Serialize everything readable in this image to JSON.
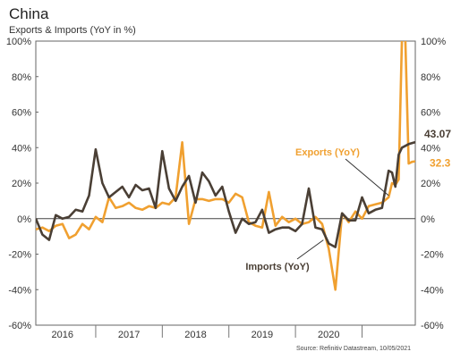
{
  "chart_data": {
    "type": "line",
    "title": "China",
    "subtitle": "Exports & Imports (YoY in %)",
    "source": "Source: Refinitiv Datastream, 10/05/2021",
    "ylim": [
      -60,
      100
    ],
    "y_ticks": [
      -60,
      -40,
      -20,
      0,
      20,
      40,
      60,
      80,
      100
    ],
    "y_tick_labels": [
      "-60%",
      "-40%",
      "-20%",
      "0%",
      "20%",
      "40%",
      "60%",
      "80%",
      "100%"
    ],
    "x_range": [
      2015.6,
      2021.3
    ],
    "x_tick_labels": [
      {
        "label": "2016",
        "pos": 2016.0
      },
      {
        "label": "2017",
        "pos": 2017.0
      },
      {
        "label": "2018",
        "pos": 2018.0
      },
      {
        "label": "2019",
        "pos": 2019.0
      },
      {
        "label": "2020",
        "pos": 2020.0
      }
    ],
    "year_dividers": [
      2016.5,
      2017.5,
      2018.5,
      2019.5,
      2020.5
    ],
    "grid": false,
    "series": [
      {
        "name": "Exports (YoY)",
        "color": "#f0a030",
        "end_label": "32.3",
        "points": [
          [
            2015.6,
            -6
          ],
          [
            2015.7,
            -5
          ],
          [
            2015.8,
            -7
          ],
          [
            2015.9,
            -4
          ],
          [
            2016.0,
            -3
          ],
          [
            2016.1,
            -11
          ],
          [
            2016.2,
            -9
          ],
          [
            2016.3,
            -3
          ],
          [
            2016.4,
            -6
          ],
          [
            2016.5,
            1
          ],
          [
            2016.6,
            -2
          ],
          [
            2016.7,
            12
          ],
          [
            2016.8,
            6
          ],
          [
            2016.9,
            7
          ],
          [
            2017.0,
            9
          ],
          [
            2017.1,
            6
          ],
          [
            2017.2,
            5
          ],
          [
            2017.3,
            7
          ],
          [
            2017.4,
            6
          ],
          [
            2017.5,
            9
          ],
          [
            2017.6,
            8
          ],
          [
            2017.7,
            12
          ],
          [
            2017.8,
            43
          ],
          [
            2017.9,
            -3
          ],
          [
            2018.0,
            11
          ],
          [
            2018.1,
            11
          ],
          [
            2018.2,
            10
          ],
          [
            2018.3,
            11
          ],
          [
            2018.4,
            11
          ],
          [
            2018.5,
            9
          ],
          [
            2018.6,
            14
          ],
          [
            2018.7,
            12
          ],
          [
            2018.8,
            -2
          ],
          [
            2018.9,
            -4
          ],
          [
            2019.0,
            -5
          ],
          [
            2019.1,
            15
          ],
          [
            2019.2,
            -4
          ],
          [
            2019.3,
            1
          ],
          [
            2019.4,
            -2
          ],
          [
            2019.5,
            0
          ],
          [
            2019.6,
            -3
          ],
          [
            2019.7,
            -2
          ],
          [
            2019.8,
            1
          ],
          [
            2019.9,
            -3
          ],
          [
            2020.0,
            -17
          ],
          [
            2020.1,
            -40
          ],
          [
            2020.2,
            3
          ],
          [
            2020.3,
            -2
          ],
          [
            2020.4,
            4
          ],
          [
            2020.5,
            0
          ],
          [
            2020.6,
            7
          ],
          [
            2020.7,
            8
          ],
          [
            2020.8,
            9
          ],
          [
            2020.9,
            12
          ],
          [
            2020.95,
            20
          ],
          [
            2021.0,
            19
          ],
          [
            2021.05,
            22
          ],
          [
            2021.1,
            102
          ],
          [
            2021.15,
            102
          ],
          [
            2021.2,
            31
          ],
          [
            2021.25,
            32
          ],
          [
            2021.3,
            32.3
          ]
        ]
      },
      {
        "name": "Imports (YoY)",
        "color": "#4a3f35",
        "end_label": "43.07",
        "points": [
          [
            2015.6,
            0
          ],
          [
            2015.7,
            -9
          ],
          [
            2015.8,
            -12
          ],
          [
            2015.9,
            2
          ],
          [
            2016.0,
            0
          ],
          [
            2016.1,
            1
          ],
          [
            2016.2,
            5
          ],
          [
            2016.3,
            4
          ],
          [
            2016.4,
            13
          ],
          [
            2016.5,
            39
          ],
          [
            2016.6,
            20
          ],
          [
            2016.7,
            12
          ],
          [
            2016.8,
            15
          ],
          [
            2016.9,
            18
          ],
          [
            2017.0,
            12
          ],
          [
            2017.1,
            19
          ],
          [
            2017.2,
            16
          ],
          [
            2017.3,
            17
          ],
          [
            2017.4,
            6
          ],
          [
            2017.5,
            38
          ],
          [
            2017.6,
            17
          ],
          [
            2017.7,
            10
          ],
          [
            2017.8,
            18
          ],
          [
            2017.9,
            24
          ],
          [
            2018.0,
            9
          ],
          [
            2018.1,
            26
          ],
          [
            2018.2,
            21
          ],
          [
            2018.3,
            13
          ],
          [
            2018.4,
            18
          ],
          [
            2018.5,
            4
          ],
          [
            2018.6,
            -8
          ],
          [
            2018.7,
            0
          ],
          [
            2018.8,
            -3
          ],
          [
            2018.9,
            -2
          ],
          [
            2019.0,
            5
          ],
          [
            2019.1,
            -8
          ],
          [
            2019.2,
            -6
          ],
          [
            2019.3,
            -5
          ],
          [
            2019.4,
            -5
          ],
          [
            2019.5,
            -7
          ],
          [
            2019.6,
            -3
          ],
          [
            2019.7,
            17
          ],
          [
            2019.8,
            -5
          ],
          [
            2019.9,
            -6
          ],
          [
            2020.0,
            -14
          ],
          [
            2020.1,
            -16
          ],
          [
            2020.2,
            3
          ],
          [
            2020.3,
            -1
          ],
          [
            2020.4,
            -1
          ],
          [
            2020.5,
            12
          ],
          [
            2020.6,
            3
          ],
          [
            2020.7,
            5
          ],
          [
            2020.8,
            6
          ],
          [
            2020.9,
            27
          ],
          [
            2020.95,
            26
          ],
          [
            2021.0,
            18
          ],
          [
            2021.05,
            36
          ],
          [
            2021.1,
            40
          ],
          [
            2021.2,
            42
          ],
          [
            2021.3,
            43.07
          ]
        ]
      }
    ],
    "annotations": [
      {
        "text": "Exports (YoY)",
        "series": 0,
        "color": "#f0a030"
      },
      {
        "text": "Imports (YoY)",
        "series": 1,
        "color": "#4a3f35"
      }
    ]
  }
}
